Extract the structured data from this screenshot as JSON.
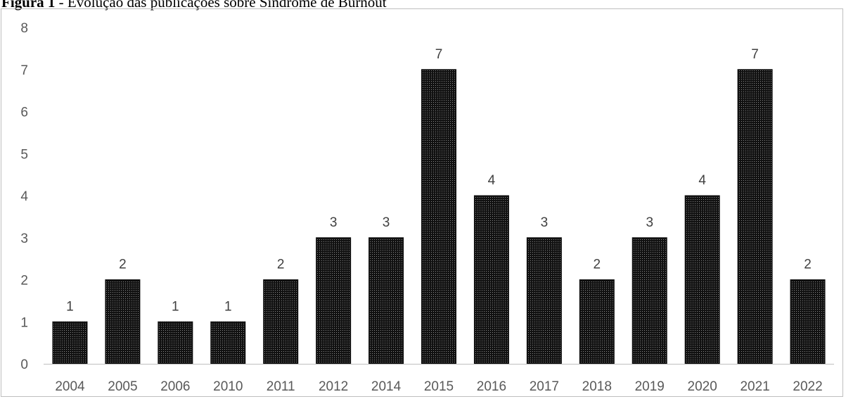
{
  "caption": {
    "label": "Figura 1",
    "text": " - Evolução das publicações sobre Síndrome de Burnout"
  },
  "chart_data": {
    "type": "bar",
    "title": "",
    "xlabel": "",
    "ylabel": "",
    "categories": [
      "2004",
      "2005",
      "2006",
      "2010",
      "2011",
      "2012",
      "2014",
      "2015",
      "2016",
      "2017",
      "2018",
      "2019",
      "2020",
      "2021",
      "2022"
    ],
    "values": [
      1,
      2,
      1,
      1,
      2,
      3,
      3,
      7,
      4,
      3,
      2,
      3,
      4,
      7,
      2
    ],
    "ylim": [
      0,
      8
    ],
    "yticks": [
      0,
      1,
      2,
      3,
      4,
      5,
      6,
      7,
      8
    ],
    "data_labels": true,
    "grid": false,
    "legend": "none",
    "bar_color": "#1a1a1a",
    "bar_pattern": "dotted"
  }
}
